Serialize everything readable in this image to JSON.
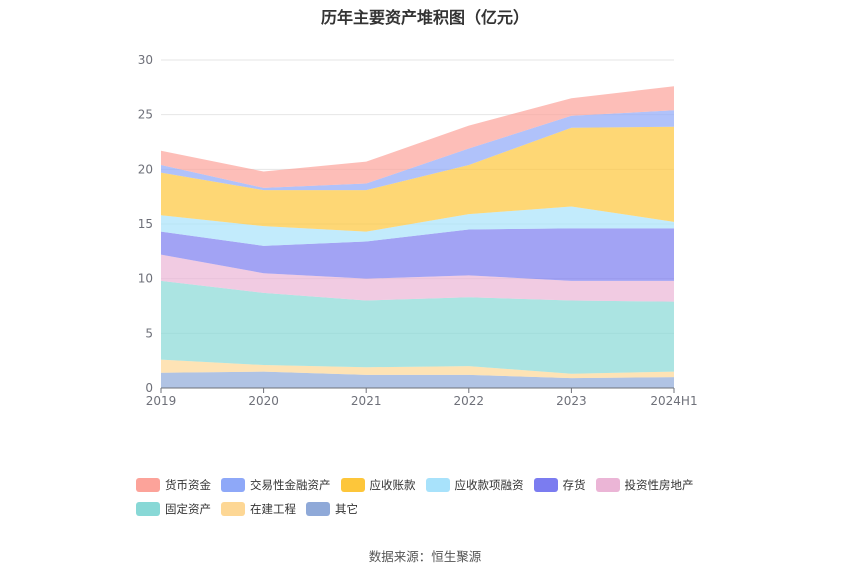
{
  "chart_data": {
    "type": "area",
    "stacked": true,
    "title": "历年主要资产堆积图（亿元）",
    "categories": [
      "2019",
      "2020",
      "2021",
      "2022",
      "2023",
      "2024H1"
    ],
    "ylim": [
      0,
      30
    ],
    "yticks": [
      0,
      5,
      10,
      15,
      20,
      25,
      30
    ],
    "grid": true,
    "legend_position": "bottom",
    "series": [
      {
        "name": "其它",
        "color": "#8fa9d8",
        "values": [
          1.4,
          1.5,
          1.2,
          1.2,
          0.9,
          1.0
        ]
      },
      {
        "name": "在建工程",
        "color": "#fdd795",
        "values": [
          1.2,
          0.6,
          0.7,
          0.8,
          0.4,
          0.5
        ]
      },
      {
        "name": "固定资产",
        "color": "#88d8d6",
        "values": [
          7.2,
          6.6,
          6.1,
          6.3,
          6.7,
          6.4
        ]
      },
      {
        "name": "投资性房地产",
        "color": "#ebb5d6",
        "values": [
          2.4,
          1.8,
          2.0,
          2.0,
          1.8,
          1.9
        ]
      },
      {
        "name": "存货",
        "color": "#7b7cf0",
        "values": [
          2.1,
          2.5,
          3.4,
          4.2,
          4.8,
          4.8
        ]
      },
      {
        "name": "应收款项融资",
        "color": "#a8e2fb",
        "values": [
          1.5,
          1.8,
          0.9,
          1.4,
          2.0,
          0.6
        ]
      },
      {
        "name": "应收账款",
        "color": "#fdc63a",
        "values": [
          3.9,
          3.3,
          3.8,
          4.5,
          7.2,
          8.7
        ]
      },
      {
        "name": "交易性金融资产",
        "color": "#8ea8f8",
        "values": [
          0.7,
          0.2,
          0.6,
          1.5,
          1.1,
          1.5
        ]
      },
      {
        "name": "货币资金",
        "color": "#fca39a",
        "values": [
          1.3,
          1.5,
          2.0,
          2.1,
          1.6,
          2.2
        ]
      }
    ]
  },
  "legend_rows": [
    [
      "货币资金",
      "交易性金融资产",
      "应收账款",
      "应收款项融资",
      "存货",
      "投资性房地产"
    ],
    [
      "固定资产",
      "在建工程",
      "其它"
    ]
  ],
  "source_text": "数据来源：恒生聚源"
}
